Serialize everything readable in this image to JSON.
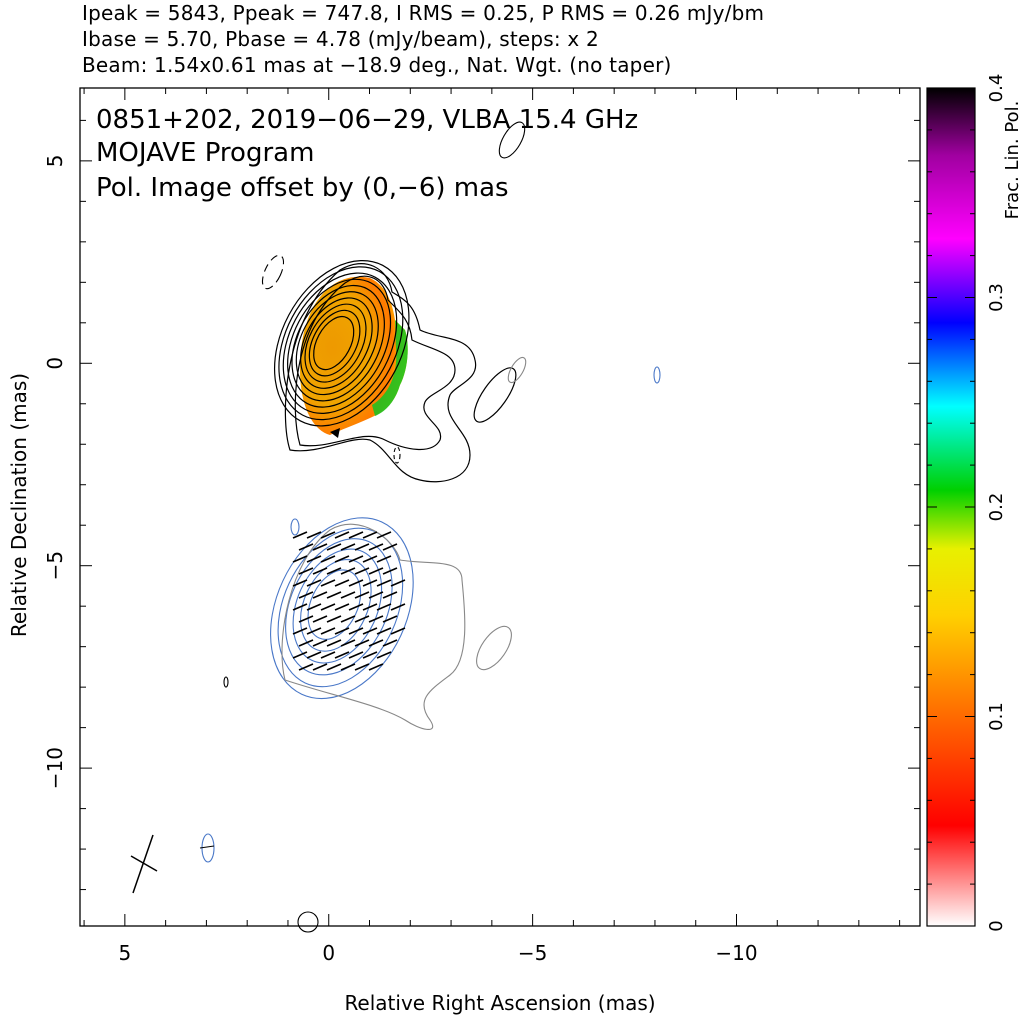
{
  "header": {
    "line1": "Ipeak = 5843, Ppeak = 747.8, I RMS = 0.25, P RMS = 0.26 mJy/bm",
    "line2": "Ibase = 5.70, Pbase = 4.78 (mJy/beam), steps: x 2",
    "line3": "Beam: 1.54x0.61 mas at −18.9 deg., Nat. Wgt. (no taper)"
  },
  "plot": {
    "title": "0851+202, 2019−06−29, VLBA 15.4 GHz",
    "subtitle": "MOJAVE Program",
    "note": "Pol. Image offset by (0,−6) mas",
    "note_color": "#4a78c8",
    "xlabel": "Relative Right Ascension (mas)",
    "ylabel": "Relative Declination (mas)",
    "colorbar_label": "Frac. Lin. Pol.",
    "pol_contour_color": "#4a78c8",
    "grey_contour_color": "#888888"
  },
  "chart_data": {
    "type": "contour",
    "xlim": [
      6.1,
      -14.5
    ],
    "ylim": [
      -13.9,
      6.8
    ],
    "x_ticks": [
      5,
      0,
      -5,
      -10
    ],
    "x_tick_labels": [
      "5",
      "0",
      "−5",
      "−10"
    ],
    "y_ticks": [
      5,
      0,
      -5,
      -10
    ],
    "y_tick_labels": [
      "5",
      "0",
      "−5",
      "−10"
    ],
    "colorbar": {
      "min": 0,
      "max": 0.4,
      "ticks": [
        0,
        0.1,
        0.2,
        0.3,
        0.4
      ],
      "tick_labels": [
        "0",
        "0.1",
        "0.2",
        "0.3",
        "0.4"
      ]
    },
    "core": {
      "x": -0.1,
      "y": 0.5,
      "peak_mJy_per_beam": 5843
    },
    "contour_levels_mJy_per_beam": [
      5.7,
      11.4,
      22.8,
      45.6,
      91.2,
      182.4,
      364.8,
      729.6,
      1459.2,
      2918.4
    ],
    "pol_offset_mas": [
      0,
      -6
    ],
    "beam": {
      "major_mas": 1.54,
      "minor_mas": 0.61,
      "pa_deg": -18.9,
      "center": [
        4.7,
        -12.2
      ]
    }
  }
}
